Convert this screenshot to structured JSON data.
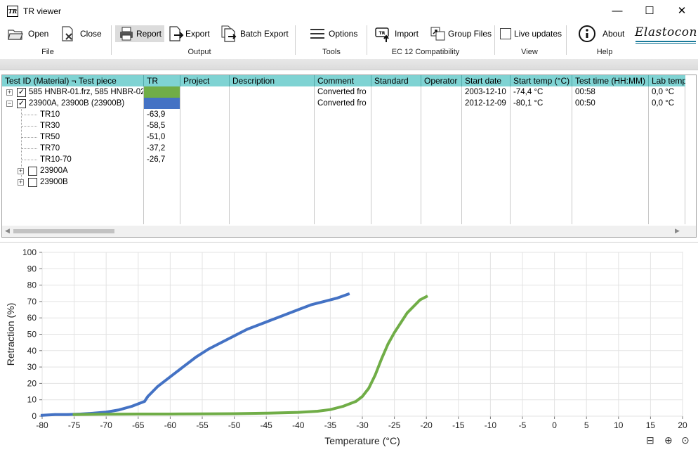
{
  "window": {
    "title": "TR viewer",
    "icon_text": "TR"
  },
  "ribbon": {
    "open": "Open",
    "close": "Close",
    "report": "Report",
    "export": "Export",
    "batch_export": "Batch Export",
    "options": "Options",
    "import": "Import",
    "group_files": "Group Files",
    "live_updates": "Live updates",
    "about": "About",
    "groups": {
      "file": "File",
      "output": "Output",
      "tools": "Tools",
      "ec12": "EC 12 Compatibility",
      "view": "View",
      "help": "Help"
    },
    "logo": "Elastocon"
  },
  "table": {
    "columns": [
      "Test ID (Material) ¬ Test piece",
      "TR",
      "Project",
      "Description",
      "Comment",
      "Standard",
      "Operator",
      "Start date",
      "Start temp (°C)",
      "Test time (HH:MM)",
      "Lab temp"
    ],
    "rows": [
      {
        "id": "585 HNBR-01.frz, 585 HNBR-02",
        "comment": "Converted fro",
        "start_date": "2003-12-10",
        "start_temp": "-74,4 °C",
        "test_time": "00:58",
        "lab_temp": "0,0 °C",
        "color": "#70ad47",
        "checked": "✓",
        "expander": "+"
      },
      {
        "id": "23900A, 23900B (23900B)",
        "comment": "Converted fro",
        "start_date": "2012-12-09",
        "start_temp": "-80,1 °C",
        "test_time": "00:50",
        "lab_temp": "0,0 °C",
        "color": "#4472c4",
        "checked": "✓",
        "expander": "−"
      }
    ],
    "tr_values": [
      {
        "name": "TR10",
        "value": "-63,9"
      },
      {
        "name": "TR30",
        "value": "-58,5"
      },
      {
        "name": "TR50",
        "value": "-51,0"
      },
      {
        "name": "TR70",
        "value": "-37,2"
      },
      {
        "name": "TR10-70",
        "value": "-26,7"
      }
    ],
    "children": [
      {
        "name": "23900A"
      },
      {
        "name": "23900B"
      }
    ]
  },
  "chart_data": {
    "type": "line",
    "xlabel": "Temperature (°C)",
    "ylabel": "Retraction (%)",
    "xlim": [
      -80,
      20
    ],
    "ylim": [
      0,
      100
    ],
    "xticks": [
      -80,
      -75,
      -70,
      -65,
      -60,
      -55,
      -50,
      -45,
      -40,
      -35,
      -30,
      -25,
      -20,
      -15,
      -10,
      -5,
      0,
      5,
      10,
      15,
      20
    ],
    "yticks": [
      0,
      10,
      20,
      30,
      40,
      50,
      60,
      70,
      80,
      90,
      100
    ],
    "grid": true,
    "series": [
      {
        "color": "#4472c4",
        "x": [
          -80,
          -78,
          -76,
          -74,
          -72,
          -70,
          -68,
          -66,
          -65,
          -64,
          -63.5,
          -62,
          -60,
          -58,
          -56,
          -54,
          -52,
          -50,
          -48,
          -46,
          -44,
          -42,
          -40,
          -38,
          -36,
          -34,
          -32.2
        ],
        "y": [
          0.5,
          1,
          1,
          1.3,
          1.8,
          2.5,
          3.8,
          6,
          7.5,
          9,
          12,
          18,
          24,
          30,
          36,
          41,
          45,
          49,
          53,
          56,
          59,
          62,
          65,
          68,
          70,
          72,
          74.5
        ]
      },
      {
        "color": "#70ad47",
        "x": [
          -75,
          -70,
          -65,
          -60,
          -55,
          -50,
          -45,
          -40,
          -37,
          -35,
          -33,
          -31,
          -30,
          -29,
          -28,
          -27,
          -26,
          -25,
          -24,
          -23,
          -22,
          -21,
          -20
        ],
        "y": [
          1,
          1.2,
          1.3,
          1.3,
          1.4,
          1.5,
          1.8,
          2.3,
          3,
          4,
          6,
          9,
          12,
          17,
          25,
          35,
          44,
          51,
          57,
          63,
          67,
          71,
          73
        ]
      }
    ]
  },
  "chart_tools": {
    "legend": "⊟",
    "zoom_in": "⊕",
    "zoom_fit": "⊙"
  }
}
